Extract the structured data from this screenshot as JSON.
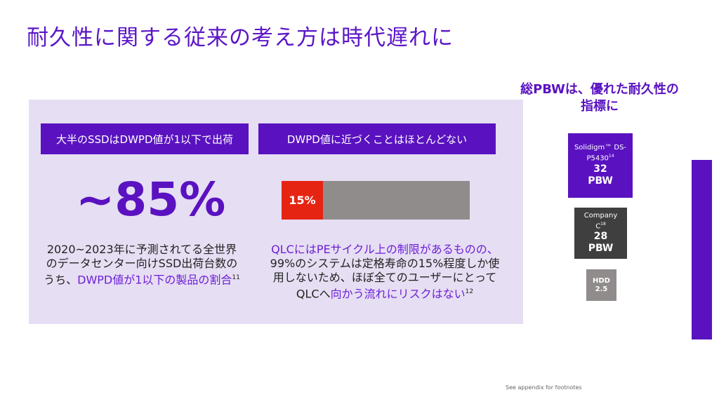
{
  "title": "耐久性に関する従来の考え方は時代遅れに",
  "left_card": {
    "header": "大半のSSDはDWPD値が1以下で出荷",
    "big_value": "~85%",
    "desc_plain": "2020~2023年に予測されてる全世界のデータセンター向けSSD出荷台数のうち、",
    "desc_accent": "DWPD値が1以下の製品の割合",
    "desc_sup": "11"
  },
  "right_card": {
    "header": "DWPD値に近づくことはほとんどない",
    "bar_label": "15%",
    "bar_fraction": 0.15,
    "desc_accent": "QLCにはPEサイクル上の制限があるものの、",
    "desc_plain": "99%のシステムは定格寿命の15%程度しか使用しないため、ほぼ全てのユーザーにとってQLCへ",
    "desc_accent2": "向かう流れにリスクはない",
    "desc_sup": "12"
  },
  "pbw": {
    "title": "総PBWは、優れた耐久性の指標に",
    "items": [
      {
        "name": "Solidigm™ DS-P5430",
        "sup": "14",
        "value": "32",
        "unit": "PBW",
        "color": "#5a12c0"
      },
      {
        "name": "Company C",
        "sup": "18",
        "value": "28",
        "unit": "PBW",
        "color": "#3f3f3f"
      },
      {
        "name": "HDD",
        "sup": "",
        "value": "2.5",
        "unit": "",
        "color": "#8f8c8b"
      }
    ]
  },
  "footnote": "See appendix for footnotes"
}
